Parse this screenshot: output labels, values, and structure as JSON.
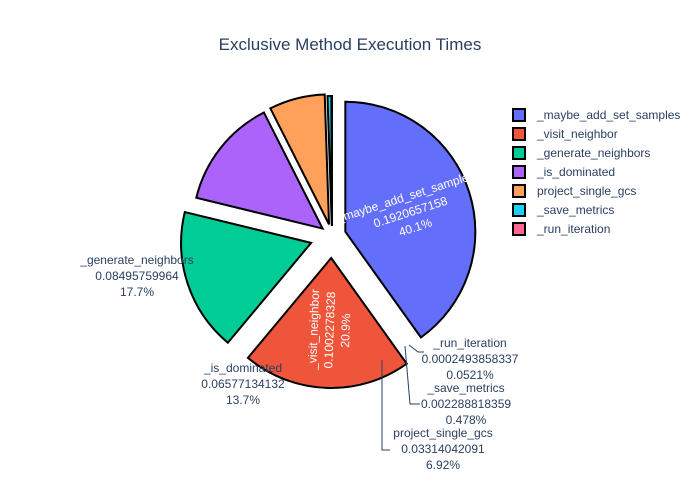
{
  "chart_data": {
    "type": "pie",
    "title": "Exclusive Method Execution Times",
    "slices": [
      {
        "label": "_maybe_add_set_samples",
        "value": 0.1920657158,
        "value_text": "0.1920657158",
        "percent": "40.1%",
        "color": "#636efa"
      },
      {
        "label": "_visit_neighbor",
        "value": 0.1002278328,
        "value_text": "0.1002278328",
        "percent": "20.9%",
        "color": "#ef553b"
      },
      {
        "label": "_generate_neighbors",
        "value": 0.08495759964,
        "value_text": "0.08495759964",
        "percent": "17.7%",
        "color": "#00cc96"
      },
      {
        "label": "_is_dominated",
        "value": 0.06577134132,
        "value_text": "0.06577134132",
        "percent": "13.7%",
        "color": "#ab63fa"
      },
      {
        "label": "project_single_gcs",
        "value": 0.03314042091,
        "value_text": "0.03314042091",
        "percent": "6.92%",
        "color": "#ffa15a"
      },
      {
        "label": "_save_metrics",
        "value": 0.002288818359,
        "value_text": "0.002288818359",
        "percent": "0.478%",
        "color": "#19d3f3"
      },
      {
        "label": "_run_iteration",
        "value": 0.0002493858337,
        "value_text": "0.0002493858337",
        "percent": "0.0521%",
        "color": "#ff6692"
      }
    ],
    "legend": [
      {
        "label": "_maybe_add_set_samples",
        "color": "#636efa"
      },
      {
        "label": "_visit_neighbor",
        "color": "#ef553b"
      },
      {
        "label": "_generate_neighbors",
        "color": "#00cc96"
      },
      {
        "label": "_is_dominated",
        "color": "#ab63fa"
      },
      {
        "label": "project_single_gcs",
        "color": "#ffa15a"
      },
      {
        "label": "_save_metrics",
        "color": "#19d3f3"
      },
      {
        "label": "_run_iteration",
        "color": "#ff6692"
      }
    ],
    "legend_position": "top-right",
    "direction": "clockwise",
    "start": "top",
    "pull": "exploded slices"
  }
}
